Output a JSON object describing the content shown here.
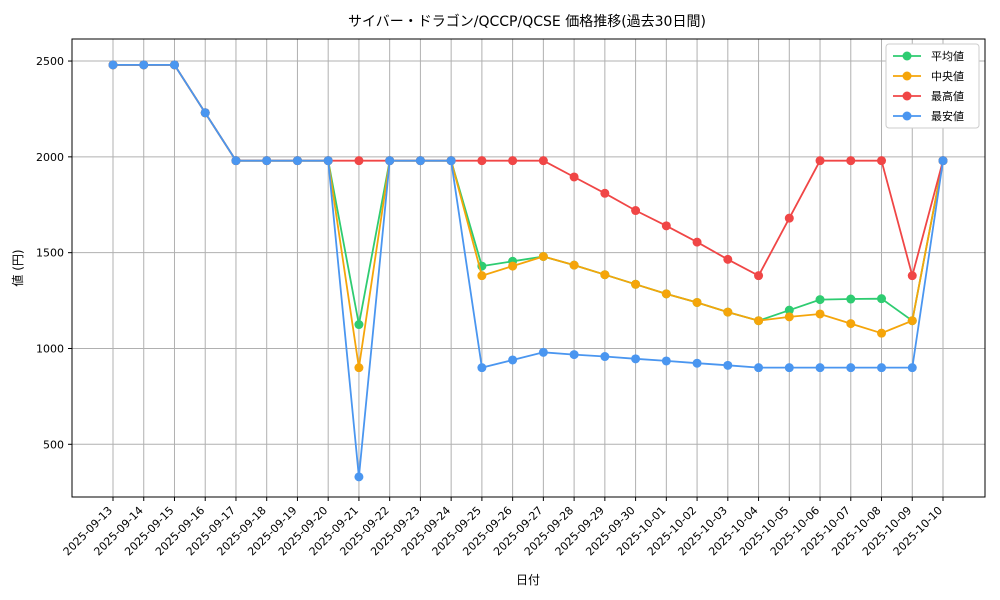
{
  "chart_data": {
    "type": "line",
    "title": "サイバー・ドラゴン/QCCP/QCSE 価格推移(過去30日間)",
    "xlabel": "日付",
    "ylabel": "値 (円)",
    "grid": true,
    "legend_position": "top-right",
    "ylim": [
      225,
      2615
    ],
    "yticks": [
      500,
      1000,
      1500,
      2000,
      2500
    ],
    "categories": [
      "2025-09-13",
      "2025-09-14",
      "2025-09-15",
      "2025-09-16",
      "2025-09-17",
      "2025-09-18",
      "2025-09-19",
      "2025-09-20",
      "2025-09-21",
      "2025-09-22",
      "2025-09-23",
      "2025-09-24",
      "2025-09-25",
      "2025-09-26",
      "2025-09-27",
      "2025-09-28",
      "2025-09-29",
      "2025-09-30",
      "2025-10-01",
      "2025-10-02",
      "2025-10-03",
      "2025-10-04",
      "2025-10-05",
      "2025-10-06",
      "2025-10-07",
      "2025-10-08",
      "2025-10-09",
      "2025-10-10"
    ],
    "series": [
      {
        "name": "平均値",
        "color": "#2ecc71",
        "values": [
          2480,
          2480,
          2480,
          2230,
          1980,
          1980,
          1980,
          1980,
          1125,
          1980,
          1980,
          1980,
          1430,
          1455,
          1480,
          1435,
          1385,
          1335,
          1285,
          1240,
          1190,
          1145,
          1200,
          1255,
          1258,
          1260,
          1145,
          1980
        ]
      },
      {
        "name": "中央値",
        "color": "#f5a50a",
        "values": [
          2480,
          2480,
          2480,
          2230,
          1980,
          1980,
          1980,
          1980,
          900,
          1980,
          1980,
          1980,
          1380,
          1430,
          1480,
          1435,
          1385,
          1335,
          1285,
          1240,
          1190,
          1145,
          1165,
          1180,
          1130,
          1080,
          1145,
          1980
        ]
      },
      {
        "name": "最高値",
        "color": "#f04646",
        "values": [
          2480,
          2480,
          2480,
          2230,
          1980,
          1980,
          1980,
          1980,
          1980,
          1980,
          1980,
          1980,
          1980,
          1980,
          1980,
          1895,
          1810,
          1720,
          1640,
          1555,
          1465,
          1380,
          1680,
          1980,
          1980,
          1980,
          1380,
          1980
        ]
      },
      {
        "name": "最安値",
        "color": "#4a96f0",
        "values": [
          2480,
          2480,
          2480,
          2230,
          1980,
          1980,
          1980,
          1980,
          330,
          1980,
          1980,
          1980,
          900,
          940,
          980,
          968,
          958,
          946,
          935,
          923,
          912,
          900,
          900,
          900,
          900,
          900,
          900,
          1980
        ]
      }
    ]
  }
}
